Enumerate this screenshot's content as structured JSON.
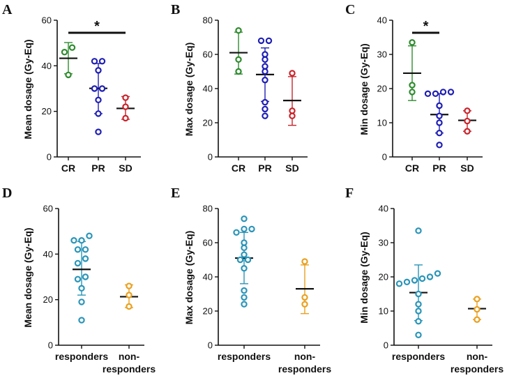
{
  "chart_data": [
    {
      "type": "scatter",
      "panel": "A",
      "ylabel": "Mean dosage (Gy-Eq)",
      "ylim": [
        0,
        60
      ],
      "yticks": [
        0,
        20,
        40,
        60
      ],
      "categories": [
        "CR",
        "PR",
        "SD"
      ],
      "colors": [
        "#2e8b2e",
        "#1f1fb4",
        "#c8242b"
      ],
      "groups": [
        {
          "name": "CR",
          "points": [
            36,
            46,
            48
          ],
          "mean": 43.3,
          "sd": [
            36.5,
            50.2
          ]
        },
        {
          "name": "PR",
          "points": [
            11,
            19,
            25,
            30,
            30,
            38,
            42,
            42
          ],
          "mean": 30.1,
          "sd": [
            19.0,
            41.0
          ]
        },
        {
          "name": "SD",
          "points": [
            17,
            22,
            26
          ],
          "mean": 21.3,
          "sd": [
            16.5,
            26.5
          ]
        }
      ],
      "significance": [
        {
          "from": "CR",
          "to": "SD",
          "label": "*"
        }
      ]
    },
    {
      "type": "scatter",
      "panel": "B",
      "ylabel": "Max dosage (Gy-Eq)",
      "ylim": [
        0,
        80
      ],
      "yticks": [
        0,
        20,
        40,
        60,
        80
      ],
      "categories": [
        "CR",
        "PR",
        "SD"
      ],
      "colors": [
        "#2e8b2e",
        "#1f1fb4",
        "#c8242b"
      ],
      "groups": [
        {
          "name": "CR",
          "points": [
            50,
            57,
            74
          ],
          "mean": 61,
          "sd": [
            48.5,
            73.0
          ]
        },
        {
          "name": "PR",
          "points": [
            24,
            28,
            32,
            45,
            50,
            53,
            57,
            60,
            68,
            68
          ],
          "mean": 48.2,
          "sd": [
            32.5,
            63.8
          ]
        },
        {
          "name": "SD",
          "points": [
            24,
            27,
            49
          ],
          "mean": 33,
          "sd": [
            18.5,
            47.0
          ]
        }
      ],
      "significance": []
    },
    {
      "type": "scatter",
      "panel": "C",
      "ylabel": "Min dosage (Gy-Eq)",
      "ylim": [
        0,
        40
      ],
      "yticks": [
        0,
        10,
        20,
        30,
        40
      ],
      "categories": [
        "CR",
        "PR",
        "SD"
      ],
      "colors": [
        "#2e8b2e",
        "#1f1fb4",
        "#c8242b"
      ],
      "groups": [
        {
          "name": "CR",
          "points": [
            19,
            21,
            33.5
          ],
          "mean": 24.5,
          "sd": [
            16.5,
            32.5
          ]
        },
        {
          "name": "PR",
          "points": [
            3.5,
            7,
            10,
            12,
            15,
            18.5,
            18.5,
            19,
            19
          ],
          "mean": 12.4,
          "sd": [
            7.0,
            18.5
          ]
        },
        {
          "name": "SD",
          "points": [
            7.5,
            10.5,
            13.5
          ],
          "mean": 10.7,
          "sd": [
            7.5,
            13.5
          ]
        }
      ],
      "significance": [
        {
          "from": "CR",
          "to": "PR",
          "label": "*"
        }
      ]
    },
    {
      "type": "scatter",
      "panel": "D",
      "ylabel": "Mean dosage (Gy-Eq)",
      "ylim": [
        0,
        60
      ],
      "yticks": [
        0,
        20,
        40,
        60
      ],
      "categories": [
        "responders",
        "non-\nresponders"
      ],
      "colors": [
        "#2a95b8",
        "#e9a020"
      ],
      "groups": [
        {
          "name": "responders",
          "points": [
            11,
            19,
            25,
            29,
            30,
            36,
            38,
            42,
            42,
            46,
            46,
            48
          ],
          "mean": 33.3,
          "sd": [
            22.0,
            45.5
          ]
        },
        {
          "name": "non-responders",
          "points": [
            17,
            22,
            26
          ],
          "mean": 21.3,
          "sd": [
            16.5,
            26.5
          ]
        }
      ],
      "significance": []
    },
    {
      "type": "scatter",
      "panel": "E",
      "ylabel": "Max dosage (Gy-Eq)",
      "ylim": [
        0,
        80
      ],
      "yticks": [
        0,
        20,
        40,
        60,
        80
      ],
      "categories": [
        "responders",
        "non-\nresponders"
      ],
      "colors": [
        "#2a95b8",
        "#e9a020"
      ],
      "groups": [
        {
          "name": "responders",
          "points": [
            24,
            28,
            32,
            45,
            50,
            50,
            53,
            57,
            60,
            66,
            68,
            68,
            74
          ],
          "mean": 51,
          "sd": [
            36.0,
            66.0
          ]
        },
        {
          "name": "non-responders",
          "points": [
            24,
            28,
            49
          ],
          "mean": 33,
          "sd": [
            18.5,
            47.0
          ]
        }
      ],
      "significance": []
    },
    {
      "type": "scatter",
      "panel": "F",
      "ylabel": "Min dosage (Gy-Eq)",
      "ylim": [
        0,
        40
      ],
      "yticks": [
        0,
        10,
        20,
        30,
        40
      ],
      "categories": [
        "responders",
        "non-\nresponders"
      ],
      "colors": [
        "#2a95b8",
        "#e9a020"
      ],
      "groups": [
        {
          "name": "responders",
          "points": [
            3,
            7,
            10,
            12,
            15,
            18,
            18.5,
            19,
            19.5,
            20,
            21,
            33.5
          ],
          "mean": 15.4,
          "sd": [
            7.2,
            23.5
          ]
        },
        {
          "name": "non-responders",
          "points": [
            7.5,
            10.5,
            13.5
          ],
          "mean": 10.7,
          "sd": [
            7.5,
            13.5
          ]
        }
      ],
      "significance": []
    }
  ]
}
